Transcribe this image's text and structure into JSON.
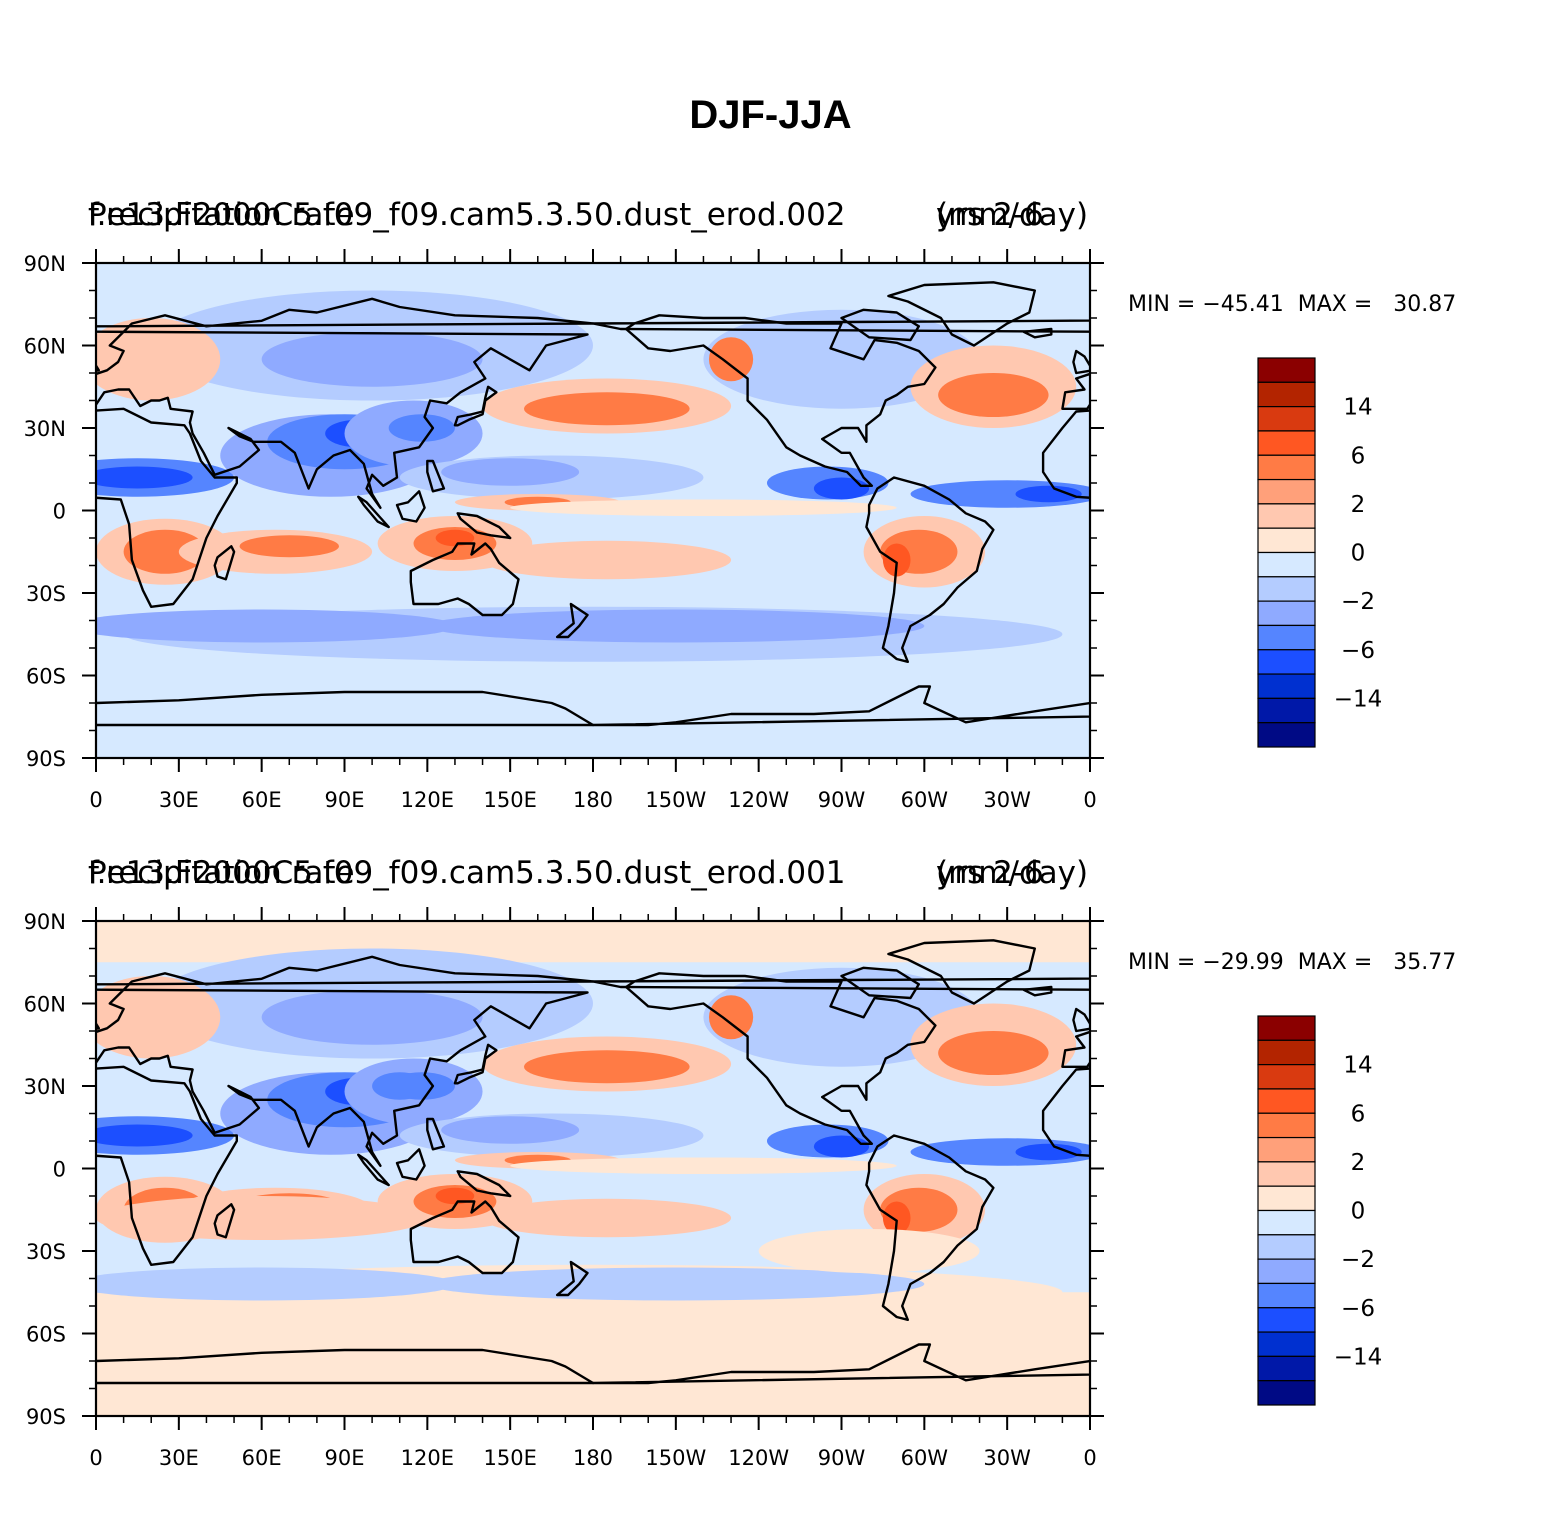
{
  "main_title": "DJF-JJA",
  "panels": [
    {
      "left_title": "Precipitation rate",
      "case_name": "f.e13.F2000C5.f09_f09.cam5.3.50.dust_erod.002",
      "right_title": "mm/day",
      "right_overprint": "yrs 2-6",
      "stats_line": "MIN = −45.41  MAX =   30.87",
      "min": -45.41,
      "max": 30.87
    },
    {
      "left_title": "Precipitation rate",
      "case_name": "f.e13.F2000C5.f09_f09.cam5.3.50.dust_erod.001",
      "right_title": "mm/day",
      "right_overprint": "yrs 2-6",
      "stats_line": "MIN = −29.99  MAX =   35.77",
      "min": -29.99,
      "max": 35.77
    }
  ],
  "lat_labels": [
    "90N",
    "60N",
    "30N",
    "0",
    "30S",
    "60S",
    "90S"
  ],
  "lon_labels": [
    "0",
    "30E",
    "60E",
    "90E",
    "120E",
    "150E",
    "180",
    "150W",
    "120W",
    "90W",
    "60W",
    "30W",
    "0"
  ],
  "colorbar": {
    "labels": [
      "14",
      "6",
      "2",
      "0",
      "−2",
      "−6",
      "−14"
    ],
    "colors": [
      "#8b0000",
      "#b32400",
      "#d93a10",
      "#ff5722",
      "#ff7b45",
      "#ffa07a",
      "#ffc8b0",
      "#ffe7d4",
      "#d6e9ff",
      "#b4ccff",
      "#8faaff",
      "#5585ff",
      "#1c4fff",
      "#0030d0",
      "#0018a8",
      "#000a85"
    ]
  },
  "palette": {
    "ocean_neutral": "#d6e9ff",
    "pos_light": "#ffe7d4",
    "pos_mid": "#ffc8b0",
    "pos_strong": "#ff7b45",
    "pos_dark": "#ff5722",
    "neg_light": "#b4ccff",
    "neg_mid": "#8faaff",
    "neg_strong": "#5585ff",
    "neg_dark": "#1c4fff",
    "coast": "#000000"
  }
}
